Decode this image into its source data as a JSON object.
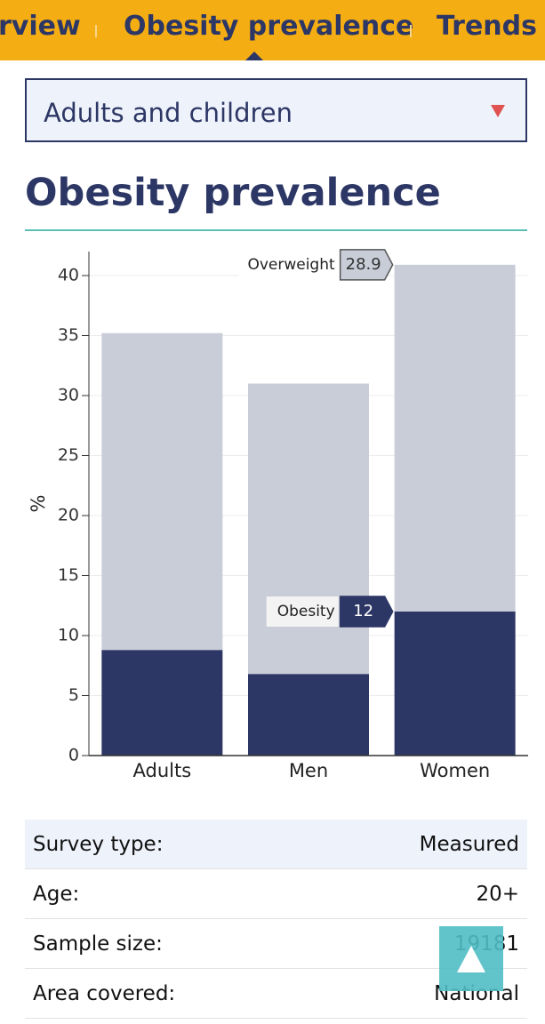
{
  "nav": {
    "tabs": [
      "rview",
      "Obesity prevalence",
      "Trends c"
    ]
  },
  "dropdown": {
    "selected": "Adults and children"
  },
  "heading": "Obesity prevalence",
  "chart": {
    "type": "bar",
    "stacked": true,
    "ylabel": "%",
    "categories": [
      "Adults",
      "Men",
      "Women"
    ],
    "series": [
      {
        "name": "Obesity",
        "color": "#2d3765",
        "values": [
          8.8,
          6.8,
          12
        ]
      },
      {
        "name": "Overweight",
        "color": "#c9cdd8",
        "values": [
          26.4,
          24.2,
          28.9
        ]
      }
    ],
    "ylim": [
      0,
      42
    ],
    "yticks": [
      0,
      5,
      10,
      15,
      20,
      25,
      30,
      35,
      40
    ],
    "grid": true
  },
  "table": {
    "rows": [
      [
        "Survey type:",
        "Measured"
      ],
      [
        "Age:",
        "20+"
      ],
      [
        "Sample size:",
        "19181"
      ],
      [
        "Area covered:",
        "National"
      ]
    ]
  }
}
